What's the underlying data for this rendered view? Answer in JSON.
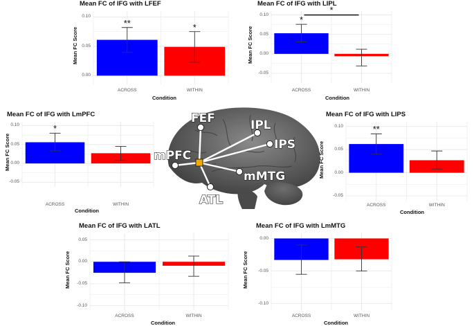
{
  "colors": {
    "across": "#0000ff",
    "within": "#ff0000",
    "grid": "#e8e8e8",
    "bg": "#ffffff"
  },
  "chart_data": [
    {
      "type": "bar",
      "title": "Mean FC of IFG with LFEF",
      "xlabel": "Condition",
      "ylabel": "Mean FC Score",
      "categories": [
        "ACROSS",
        "WITHIN"
      ],
      "values": [
        0.061,
        0.049
      ],
      "errors": [
        [
          0.04,
          0.082
        ],
        [
          0.023,
          0.075
        ]
      ],
      "significance": [
        "**",
        "*"
      ],
      "yticks": [
        "0.00",
        "0.05",
        "0.10"
      ],
      "ylim": [
        -0.015,
        0.11
      ],
      "bracket": "",
      "grid": true
    },
    {
      "type": "bar",
      "title": "Mean FC of IFG with LIPL",
      "xlabel": "Condition",
      "ylabel": "Mean FC Score",
      "categories": [
        "ACROSS",
        "WITHIN"
      ],
      "values": [
        0.053,
        -0.006
      ],
      "errors": [
        [
          0.031,
          0.076
        ],
        [
          -0.031,
          0.012
        ]
      ],
      "significance": [
        "*",
        ""
      ],
      "yticks": [
        "-0.05",
        "0.00",
        "0.05",
        "0.10"
      ],
      "ylim": [
        -0.075,
        0.11
      ],
      "bracket": "*",
      "grid": true
    },
    {
      "type": "bar",
      "title": "Mean FC of IFG with LmPFC",
      "xlabel": "Condition",
      "ylabel": "Mean FC Score",
      "categories": [
        "ACROSS",
        "WITHIN"
      ],
      "values": [
        0.056,
        0.027
      ],
      "errors": [
        [
          0.033,
          0.08
        ],
        [
          0.008,
          0.045
        ]
      ],
      "significance": [
        "*",
        ""
      ],
      "yticks": [
        "-0.05",
        "0.00",
        "0.05",
        "0.10"
      ],
      "ylim": [
        -0.062,
        0.11
      ],
      "bracket": "",
      "grid": true
    },
    {
      "type": "bar",
      "title": "Mean FC of IFG with LIPS",
      "xlabel": "Condition",
      "ylabel": "Mean FC Score",
      "categories": [
        "ACROSS",
        "WITHIN"
      ],
      "values": [
        0.062,
        0.027
      ],
      "errors": [
        [
          0.04,
          0.084
        ],
        [
          0.008,
          0.047
        ]
      ],
      "significance": [
        "**",
        ""
      ],
      "yticks": [
        "-0.05",
        "0.00",
        "0.05",
        "0.10"
      ],
      "ylim": [
        -0.062,
        0.11
      ],
      "bracket": "",
      "grid": true
    },
    {
      "type": "bar",
      "title": "Mean FC of IFG with LATL",
      "xlabel": "Condition",
      "ylabel": "Mean FC Score",
      "categories": [
        "ACROSS",
        "WITHIN"
      ],
      "values": [
        -0.025,
        -0.009
      ],
      "errors": [
        [
          -0.048,
          0.0
        ],
        [
          -0.033,
          0.013
        ]
      ],
      "significance": [
        "",
        ""
      ],
      "yticks": [
        "-0.10",
        "-0.05",
        "0.00",
        "0.05"
      ],
      "ylim": [
        -0.11,
        0.065
      ],
      "bracket": "",
      "grid": true
    },
    {
      "type": "bar",
      "title": "Mean FC of IFG with LmMTG",
      "xlabel": "Condition",
      "ylabel": "Mean FC Score",
      "categories": [
        "ACROSS",
        "WITHIN"
      ],
      "values": [
        -0.033,
        -0.032
      ],
      "errors": [
        [
          -0.055,
          -0.01
        ],
        [
          -0.05,
          -0.013
        ]
      ],
      "significance": [
        "",
        ""
      ],
      "yticks": [
        "-0.10",
        "-0.05",
        "0.00"
      ],
      "ylim": [
        -0.11,
        0.008
      ],
      "bracket": "",
      "grid": true
    }
  ],
  "brain": {
    "center_label": "",
    "regions": [
      "FEF",
      "IPL",
      "IPS",
      "mPFC",
      "mMTG",
      "ATL"
    ]
  }
}
